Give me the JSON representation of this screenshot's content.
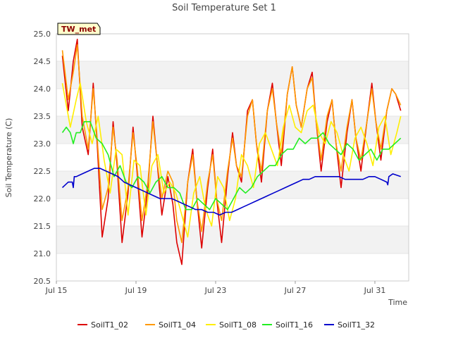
{
  "chart_data": {
    "type": "line",
    "title": "Soil Temperature Set 1",
    "xlabel": "Time",
    "ylabel": "Soil Temperature (C)",
    "station_tag": "TW_met",
    "ylim": [
      20.5,
      25.0
    ],
    "y_ticks": [
      20.5,
      21.0,
      21.5,
      22.0,
      22.5,
      23.0,
      23.5,
      24.0,
      24.5,
      25.0
    ],
    "y_tick_labels": [
      "20.5",
      "21.0",
      "21.5",
      "22.0",
      "22.5",
      "23.0",
      "23.5",
      "24.0",
      "24.5",
      "25.0"
    ],
    "x_ticks": [
      "Jul 15",
      "Jul 19",
      "Jul 23",
      "Jul 27",
      "Jul 31"
    ],
    "grid": "horizontal bands",
    "legend_position": "bottom",
    "series": [
      {
        "name": "SoilT1_02",
        "color": "#dd0000",
        "x": [
          15.3,
          15.6,
          15.85,
          16.05,
          16.3,
          16.6,
          16.85,
          17.05,
          17.3,
          17.6,
          17.85,
          18.05,
          18.3,
          18.6,
          18.85,
          19.05,
          19.3,
          19.6,
          19.85,
          20.05,
          20.3,
          20.6,
          20.85,
          21.05,
          21.3,
          21.6,
          21.85,
          22.05,
          22.3,
          22.6,
          22.85,
          23.05,
          23.3,
          23.6,
          23.85,
          24.05,
          24.3,
          24.6,
          24.85,
          25.05,
          25.3,
          25.6,
          25.85,
          26.05,
          26.3,
          26.6,
          26.85,
          27.05,
          27.3,
          27.6,
          27.85,
          28.05,
          28.3,
          28.6,
          28.85,
          29.05,
          29.3,
          29.6,
          29.85,
          30.05,
          30.3,
          30.6,
          30.85,
          31.05,
          31.3,
          31.6,
          31.85,
          32.05,
          32.3
        ],
        "y": [
          24.6,
          23.6,
          24.5,
          24.9,
          23.3,
          22.8,
          24.1,
          23.0,
          21.3,
          22.0,
          23.4,
          22.6,
          21.2,
          22.1,
          23.3,
          22.5,
          21.3,
          22.2,
          23.5,
          22.7,
          21.7,
          22.4,
          21.9,
          21.2,
          20.8,
          22.3,
          22.9,
          22.0,
          21.1,
          22.2,
          22.9,
          22.0,
          21.2,
          22.4,
          23.2,
          22.6,
          22.3,
          23.6,
          23.8,
          23.0,
          22.3,
          23.6,
          24.1,
          23.4,
          22.6,
          23.9,
          24.4,
          23.7,
          23.3,
          24.0,
          24.3,
          23.4,
          22.5,
          23.4,
          23.8,
          23.0,
          22.2,
          23.2,
          23.8,
          23.1,
          22.5,
          23.4,
          24.1,
          23.4,
          22.7,
          23.6,
          24.0,
          23.9,
          23.6
        ]
      },
      {
        "name": "SoilT1_04",
        "color": "#ff9900",
        "x": [
          15.3,
          15.6,
          15.85,
          16.05,
          16.3,
          16.6,
          16.85,
          17.05,
          17.3,
          17.6,
          17.85,
          18.05,
          18.3,
          18.6,
          18.85,
          19.05,
          19.3,
          19.6,
          19.85,
          20.05,
          20.3,
          20.6,
          20.85,
          21.05,
          21.3,
          21.6,
          21.85,
          22.05,
          22.3,
          22.6,
          22.85,
          23.05,
          23.3,
          23.6,
          23.85,
          24.05,
          24.3,
          24.6,
          24.85,
          25.05,
          25.3,
          25.6,
          25.85,
          26.05,
          26.3,
          26.6,
          26.85,
          27.05,
          27.3,
          27.6,
          27.85,
          28.05,
          28.3,
          28.6,
          28.85,
          29.05,
          29.3,
          29.6,
          29.85,
          30.05,
          30.3,
          30.6,
          30.85,
          31.05,
          31.3,
          31.6,
          31.85,
          32.05,
          32.3
        ],
        "y": [
          24.7,
          23.8,
          24.3,
          24.8,
          23.5,
          22.9,
          24.0,
          23.1,
          21.8,
          22.2,
          23.3,
          22.7,
          21.6,
          22.2,
          23.2,
          22.6,
          21.6,
          22.3,
          23.4,
          22.7,
          22.0,
          22.5,
          22.3,
          21.6,
          21.2,
          22.3,
          22.8,
          22.0,
          21.4,
          22.3,
          22.8,
          22.0,
          21.6,
          22.5,
          23.1,
          22.6,
          22.4,
          23.5,
          23.8,
          23.0,
          22.5,
          23.6,
          24.0,
          23.4,
          22.8,
          23.9,
          24.4,
          23.7,
          23.3,
          24.0,
          24.2,
          23.4,
          22.7,
          23.5,
          23.8,
          23.0,
          22.5,
          23.3,
          23.8,
          23.1,
          22.7,
          23.4,
          24.0,
          23.4,
          22.9,
          23.6,
          24.0,
          23.9,
          23.7
        ]
      },
      {
        "name": "SoilT1_08",
        "color": "#ffee00",
        "x": [
          15.3,
          15.7,
          16.0,
          16.2,
          16.5,
          16.8,
          17.1,
          17.4,
          17.7,
          18.0,
          18.3,
          18.6,
          18.9,
          19.2,
          19.5,
          19.8,
          20.1,
          20.4,
          20.7,
          21.0,
          21.3,
          21.6,
          21.9,
          22.2,
          22.5,
          22.8,
          23.1,
          23.4,
          23.7,
          24.0,
          24.3,
          24.6,
          24.9,
          25.2,
          25.5,
          25.8,
          26.1,
          26.4,
          26.7,
          27.0,
          27.3,
          27.6,
          27.9,
          28.2,
          28.5,
          28.8,
          29.1,
          29.4,
          29.7,
          30.0,
          30.3,
          30.6,
          30.9,
          31.2,
          31.5,
          31.8,
          32.1,
          32.3
        ],
        "y": [
          24.1,
          23.3,
          23.8,
          24.1,
          23.4,
          23.0,
          23.5,
          22.7,
          22.1,
          22.9,
          22.8,
          21.7,
          22.7,
          22.6,
          21.7,
          22.6,
          22.8,
          22.1,
          22.3,
          22.1,
          21.7,
          21.3,
          22.1,
          22.4,
          21.8,
          21.5,
          22.4,
          22.2,
          21.6,
          22.0,
          22.8,
          22.6,
          22.2,
          23.0,
          23.2,
          22.9,
          22.6,
          23.3,
          23.7,
          23.3,
          23.2,
          23.6,
          23.7,
          23.2,
          23.0,
          23.4,
          23.2,
          22.8,
          22.5,
          23.1,
          23.3,
          23.0,
          22.6,
          23.3,
          23.5,
          22.8,
          23.2,
          23.5
        ]
      },
      {
        "name": "SoilT1_16",
        "color": "#22ee22",
        "x": [
          15.3,
          15.5,
          15.7,
          15.85,
          16.0,
          16.2,
          16.4,
          16.7,
          17.0,
          17.3,
          17.6,
          17.9,
          18.2,
          18.5,
          18.8,
          19.1,
          19.4,
          19.7,
          20.0,
          20.3,
          20.6,
          20.9,
          21.2,
          21.5,
          21.8,
          22.1,
          22.4,
          22.7,
          23.0,
          23.3,
          23.6,
          23.9,
          24.2,
          24.5,
          24.8,
          25.1,
          25.4,
          25.7,
          26.0,
          26.3,
          26.6,
          26.9,
          27.2,
          27.5,
          27.8,
          28.1,
          28.4,
          28.7,
          29.0,
          29.3,
          29.6,
          29.9,
          30.2,
          30.5,
          30.8,
          31.1,
          31.4,
          31.7,
          32.0,
          32.3
        ],
        "y": [
          23.2,
          23.3,
          23.2,
          23.0,
          23.2,
          23.2,
          23.4,
          23.4,
          23.1,
          23.0,
          22.8,
          22.4,
          22.6,
          22.3,
          22.2,
          22.4,
          22.3,
          22.1,
          22.3,
          22.4,
          22.2,
          22.2,
          22.1,
          21.8,
          21.8,
          22.0,
          21.9,
          21.8,
          22.0,
          21.9,
          21.8,
          22.0,
          22.2,
          22.1,
          22.2,
          22.4,
          22.5,
          22.6,
          22.6,
          22.8,
          22.9,
          22.9,
          23.1,
          23.0,
          23.1,
          23.1,
          23.2,
          23.0,
          22.9,
          22.8,
          23.0,
          22.9,
          22.7,
          22.8,
          22.9,
          22.7,
          22.9,
          22.9,
          23.0,
          23.1
        ]
      },
      {
        "name": "SoilT1_32",
        "color": "#0000cc",
        "x": [
          15.3,
          15.6,
          15.8,
          15.85,
          15.9,
          16.0,
          16.3,
          16.6,
          16.9,
          17.2,
          17.5,
          17.8,
          18.1,
          18.4,
          18.7,
          19.0,
          19.3,
          19.6,
          19.9,
          20.2,
          20.5,
          20.8,
          21.1,
          21.4,
          21.7,
          22.0,
          22.3,
          22.6,
          22.9,
          23.2,
          23.5,
          23.8,
          24.1,
          24.4,
          24.7,
          25.0,
          25.3,
          25.6,
          25.9,
          26.2,
          26.5,
          26.8,
          27.1,
          27.4,
          27.7,
          28.0,
          28.3,
          28.6,
          28.9,
          29.2,
          29.5,
          29.8,
          30.1,
          30.4,
          30.7,
          31.0,
          31.3,
          31.6,
          31.65,
          31.7,
          31.9,
          32.3
        ],
        "y": [
          22.2,
          22.3,
          22.3,
          22.2,
          22.4,
          22.4,
          22.45,
          22.5,
          22.55,
          22.55,
          22.5,
          22.45,
          22.4,
          22.3,
          22.25,
          22.2,
          22.15,
          22.1,
          22.05,
          22.0,
          22.0,
          22.0,
          21.95,
          21.9,
          21.85,
          21.8,
          21.8,
          21.75,
          21.75,
          21.7,
          21.75,
          21.75,
          21.8,
          21.85,
          21.9,
          21.95,
          22.0,
          22.05,
          22.1,
          22.15,
          22.2,
          22.25,
          22.3,
          22.35,
          22.35,
          22.4,
          22.4,
          22.4,
          22.4,
          22.4,
          22.35,
          22.35,
          22.35,
          22.35,
          22.4,
          22.4,
          22.35,
          22.3,
          22.25,
          22.4,
          22.45,
          22.4
        ]
      }
    ]
  }
}
